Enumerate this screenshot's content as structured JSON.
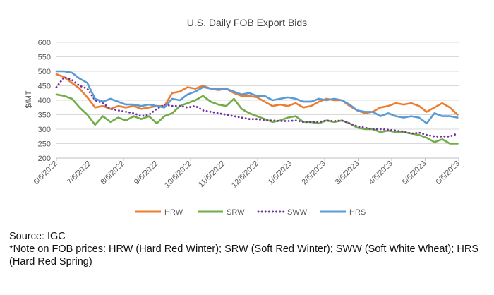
{
  "chart_data": {
    "type": "line",
    "title": "U.S. Daily FOB Export Bids",
    "ylabel": "$/MT",
    "xlabel": "",
    "ylim": [
      200,
      600
    ],
    "yticks": [
      200,
      250,
      300,
      350,
      400,
      450,
      500,
      550,
      600
    ],
    "xlim": [
      "2022-06-06",
      "2023-06-06"
    ],
    "xtick_labels": [
      "6/6/2022",
      "7/6/2022",
      "8/6/2022",
      "9/6/2022",
      "10/6/2022",
      "11/6/2022",
      "12/6/2022",
      "1/6/2023",
      "2/6/2023",
      "3/6/2023",
      "4/6/2023",
      "5/6/2023",
      "6/6/2023"
    ],
    "grid": "horizontal",
    "legend_position": "bottom",
    "series": [
      {
        "name": "HRW",
        "color": "#ED7D31",
        "style": "solid",
        "x": [
          "2022-06-06",
          "2022-06-13",
          "2022-06-20",
          "2022-06-27",
          "2022-07-04",
          "2022-07-11",
          "2022-07-18",
          "2022-07-25",
          "2022-08-01",
          "2022-08-08",
          "2022-08-15",
          "2022-08-22",
          "2022-08-29",
          "2022-09-05",
          "2022-09-12",
          "2022-09-19",
          "2022-09-26",
          "2022-10-03",
          "2022-10-10",
          "2022-10-17",
          "2022-10-24",
          "2022-10-31",
          "2022-11-07",
          "2022-11-14",
          "2022-11-21",
          "2022-11-28",
          "2022-12-05",
          "2022-12-12",
          "2022-12-19",
          "2022-12-26",
          "2023-01-02",
          "2023-01-09",
          "2023-01-16",
          "2023-01-23",
          "2023-01-30",
          "2023-02-06",
          "2023-02-13",
          "2023-02-20",
          "2023-02-27",
          "2023-03-06",
          "2023-03-13",
          "2023-03-20",
          "2023-03-27",
          "2023-04-03",
          "2023-04-10",
          "2023-04-17",
          "2023-04-24",
          "2023-05-01",
          "2023-05-08",
          "2023-05-15",
          "2023-05-22",
          "2023-05-29",
          "2023-06-05"
        ],
        "values": [
          490,
          480,
          460,
          440,
          410,
          375,
          380,
          370,
          380,
          375,
          380,
          370,
          375,
          380,
          380,
          425,
          430,
          445,
          440,
          450,
          440,
          435,
          440,
          425,
          415,
          415,
          410,
          395,
          380,
          385,
          380,
          390,
          375,
          380,
          395,
          405,
          400,
          400,
          380,
          365,
          355,
          360,
          375,
          380,
          390,
          385,
          390,
          380,
          360,
          375,
          390,
          375,
          350
        ]
      },
      {
        "name": "SRW",
        "color": "#70AD47",
        "style": "solid",
        "x": [
          "2022-06-06",
          "2022-06-13",
          "2022-06-20",
          "2022-06-27",
          "2022-07-04",
          "2022-07-11",
          "2022-07-18",
          "2022-07-25",
          "2022-08-01",
          "2022-08-08",
          "2022-08-15",
          "2022-08-22",
          "2022-08-29",
          "2022-09-05",
          "2022-09-12",
          "2022-09-19",
          "2022-09-26",
          "2022-10-03",
          "2022-10-10",
          "2022-10-17",
          "2022-10-24",
          "2022-10-31",
          "2022-11-07",
          "2022-11-14",
          "2022-11-21",
          "2022-11-28",
          "2022-12-05",
          "2022-12-12",
          "2022-12-19",
          "2022-12-26",
          "2023-01-02",
          "2023-01-09",
          "2023-01-16",
          "2023-01-23",
          "2023-01-30",
          "2023-02-06",
          "2023-02-13",
          "2023-02-20",
          "2023-02-27",
          "2023-03-06",
          "2023-03-13",
          "2023-03-20",
          "2023-03-27",
          "2023-04-03",
          "2023-04-10",
          "2023-04-17",
          "2023-04-24",
          "2023-05-01",
          "2023-05-08",
          "2023-05-15",
          "2023-05-22",
          "2023-05-29",
          "2023-06-05"
        ],
        "values": [
          420,
          415,
          405,
          375,
          350,
          315,
          345,
          325,
          340,
          330,
          345,
          335,
          345,
          320,
          345,
          355,
          380,
          390,
          400,
          415,
          395,
          385,
          380,
          405,
          370,
          355,
          345,
          335,
          325,
          330,
          340,
          345,
          325,
          325,
          320,
          330,
          325,
          330,
          320,
          305,
          300,
          300,
          290,
          295,
          290,
          290,
          285,
          280,
          270,
          255,
          265,
          250,
          250
        ]
      },
      {
        "name": "SWW",
        "color": "#7030A0",
        "style": "dotted",
        "x": [
          "2022-06-06",
          "2022-06-13",
          "2022-06-20",
          "2022-06-27",
          "2022-07-04",
          "2022-07-11",
          "2022-07-18",
          "2022-07-25",
          "2022-08-01",
          "2022-08-08",
          "2022-08-15",
          "2022-08-22",
          "2022-08-29",
          "2022-09-05",
          "2022-09-12",
          "2022-09-19",
          "2022-09-26",
          "2022-10-03",
          "2022-10-10",
          "2022-10-17",
          "2022-10-24",
          "2022-10-31",
          "2022-11-07",
          "2022-11-14",
          "2022-11-21",
          "2022-11-28",
          "2022-12-05",
          "2022-12-12",
          "2022-12-19",
          "2022-12-26",
          "2023-01-02",
          "2023-01-09",
          "2023-01-16",
          "2023-01-23",
          "2023-01-30",
          "2023-02-06",
          "2023-02-13",
          "2023-02-20",
          "2023-02-27",
          "2023-03-06",
          "2023-03-13",
          "2023-03-20",
          "2023-03-27",
          "2023-04-03",
          "2023-04-10",
          "2023-04-17",
          "2023-04-24",
          "2023-05-01",
          "2023-05-08",
          "2023-05-15",
          "2023-05-22",
          "2023-05-29",
          "2023-06-05"
        ],
        "values": [
          445,
          480,
          470,
          450,
          440,
          400,
          390,
          370,
          365,
          360,
          355,
          345,
          350,
          370,
          385,
          380,
          380,
          375,
          380,
          365,
          360,
          355,
          350,
          345,
          340,
          335,
          335,
          330,
          330,
          328,
          328,
          330,
          325,
          325,
          325,
          330,
          328,
          330,
          320,
          310,
          305,
          300,
          300,
          298,
          295,
          292,
          285,
          288,
          280,
          275,
          275,
          275,
          285
        ]
      },
      {
        "name": "HRS",
        "color": "#5B9BD5",
        "style": "solid",
        "x": [
          "2022-06-06",
          "2022-06-13",
          "2022-06-20",
          "2022-06-27",
          "2022-07-04",
          "2022-07-11",
          "2022-07-18",
          "2022-07-25",
          "2022-08-01",
          "2022-08-08",
          "2022-08-15",
          "2022-08-22",
          "2022-08-29",
          "2022-09-05",
          "2022-09-12",
          "2022-09-19",
          "2022-09-26",
          "2022-10-03",
          "2022-10-10",
          "2022-10-17",
          "2022-10-24",
          "2022-10-31",
          "2022-11-07",
          "2022-11-14",
          "2022-11-21",
          "2022-11-28",
          "2022-12-05",
          "2022-12-12",
          "2022-12-19",
          "2022-12-26",
          "2023-01-02",
          "2023-01-09",
          "2023-01-16",
          "2023-01-23",
          "2023-01-30",
          "2023-02-06",
          "2023-02-13",
          "2023-02-20",
          "2023-02-27",
          "2023-03-06",
          "2023-03-13",
          "2023-03-20",
          "2023-03-27",
          "2023-04-03",
          "2023-04-10",
          "2023-04-17",
          "2023-04-24",
          "2023-05-01",
          "2023-05-08",
          "2023-05-15",
          "2023-05-22",
          "2023-05-29",
          "2023-06-05"
        ],
        "values": [
          500,
          500,
          495,
          475,
          460,
          405,
          395,
          405,
          395,
          385,
          385,
          380,
          385,
          380,
          375,
          405,
          400,
          420,
          430,
          445,
          440,
          440,
          440,
          430,
          420,
          425,
          415,
          415,
          400,
          405,
          410,
          405,
          395,
          395,
          405,
          400,
          405,
          400,
          385,
          365,
          360,
          360,
          345,
          355,
          345,
          340,
          345,
          340,
          320,
          355,
          345,
          345,
          340
        ]
      }
    ]
  },
  "notes": {
    "source": "Source: IGC",
    "fob_note": "*Note on FOB prices: HRW (Hard Red Winter); SRW (Soft Red Winter); SWW (Soft White Wheat); HRS (Hard Red Spring)"
  }
}
